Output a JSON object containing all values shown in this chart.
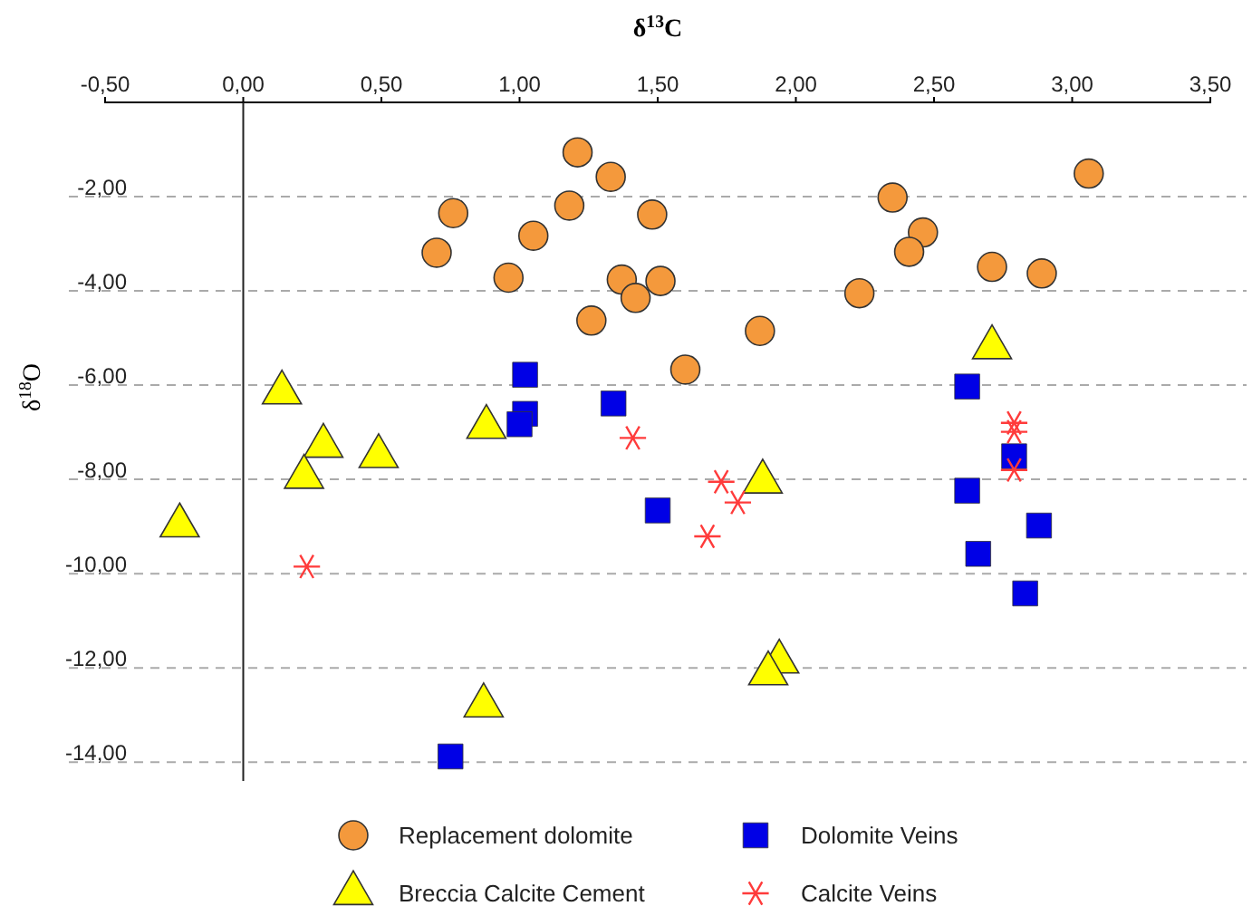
{
  "chart_data": {
    "type": "scatter",
    "xlabel": "δ$^{13}$C",
    "ylabel": "δ$^{18}$O",
    "xlim": [
      -0.5,
      3.5
    ],
    "xticks": [
      {
        "value": -0.5,
        "label": "-0,50"
      },
      {
        "value": 0,
        "label": "0,00"
      },
      {
        "value": 0.5,
        "label": "0,50"
      },
      {
        "value": 1,
        "label": "1,00"
      },
      {
        "value": 1.5,
        "label": "1,50"
      },
      {
        "value": 2,
        "label": "2,00"
      },
      {
        "value": 2.5,
        "label": "2,50"
      },
      {
        "value": 3,
        "label": "3,00"
      },
      {
        "value": 3.5,
        "label": "3,50"
      }
    ],
    "ylim": [
      -14.4,
      0
    ],
    "yticks": [
      {
        "value": -2,
        "label": "-2,00"
      },
      {
        "value": -4,
        "label": "-4,00"
      },
      {
        "value": -6,
        "label": "-6,00"
      },
      {
        "value": -8,
        "label": "-8,00"
      },
      {
        "value": -10,
        "label": "-10,00"
      },
      {
        "value": -12,
        "label": "-12,00"
      },
      {
        "value": -14,
        "label": "-14,00"
      }
    ],
    "grid": "y",
    "legend": "bottom",
    "series": [
      {
        "name": "Replacement dolomite",
        "color": "#f4993c",
        "marker": "circle",
        "x": [
          0.76,
          0.7,
          1.05,
          0.96,
          1.21,
          1.18,
          1.33,
          1.37,
          1.42,
          1.26,
          1.48,
          1.51,
          1.6,
          1.87,
          2.23,
          2.35,
          2.46,
          2.41,
          2.71,
          2.89,
          3.06
        ],
        "values": [
          -2.35,
          -3.19,
          -2.83,
          -3.72,
          -1.06,
          -2.19,
          -1.58,
          -3.76,
          -4.15,
          -4.63,
          -2.38,
          -3.79,
          -5.67,
          -4.85,
          -4.05,
          -2.02,
          -2.76,
          -3.17,
          -3.49,
          -3.63,
          -1.51
        ]
      },
      {
        "name": "Dolomite Veins",
        "color": "#0000e6",
        "marker": "square",
        "x": [
          1.02,
          1.02,
          1.0,
          1.34,
          0.75,
          1.5,
          2.62,
          2.79,
          2.62,
          2.88,
          2.66,
          2.83
        ],
        "values": [
          -5.78,
          -6.61,
          -6.83,
          -6.39,
          -13.88,
          -8.66,
          -6.03,
          -7.51,
          -8.24,
          -8.98,
          -9.58,
          -10.42
        ]
      },
      {
        "name": "Breccia Calcite Cement",
        "color": "#ffff00",
        "marker": "triangle",
        "x": [
          0.14,
          0.29,
          0.49,
          0.22,
          -0.23,
          0.88,
          0.87,
          1.88,
          1.94,
          1.9,
          2.71
        ],
        "values": [
          -6.16,
          -7.29,
          -7.51,
          -7.95,
          -8.98,
          -6.89,
          -12.8,
          -8.05,
          -11.87,
          -12.12,
          -5.2
        ]
      },
      {
        "name": "Calcite Veins",
        "color": "#ff3b3b",
        "marker": "cross",
        "x": [
          0.23,
          1.41,
          1.73,
          1.79,
          1.68,
          2.79,
          2.79,
          2.79
        ],
        "values": [
          -9.85,
          -7.12,
          -8.05,
          -8.49,
          -9.21,
          -6.8,
          -6.99,
          -7.8
        ]
      }
    ]
  }
}
